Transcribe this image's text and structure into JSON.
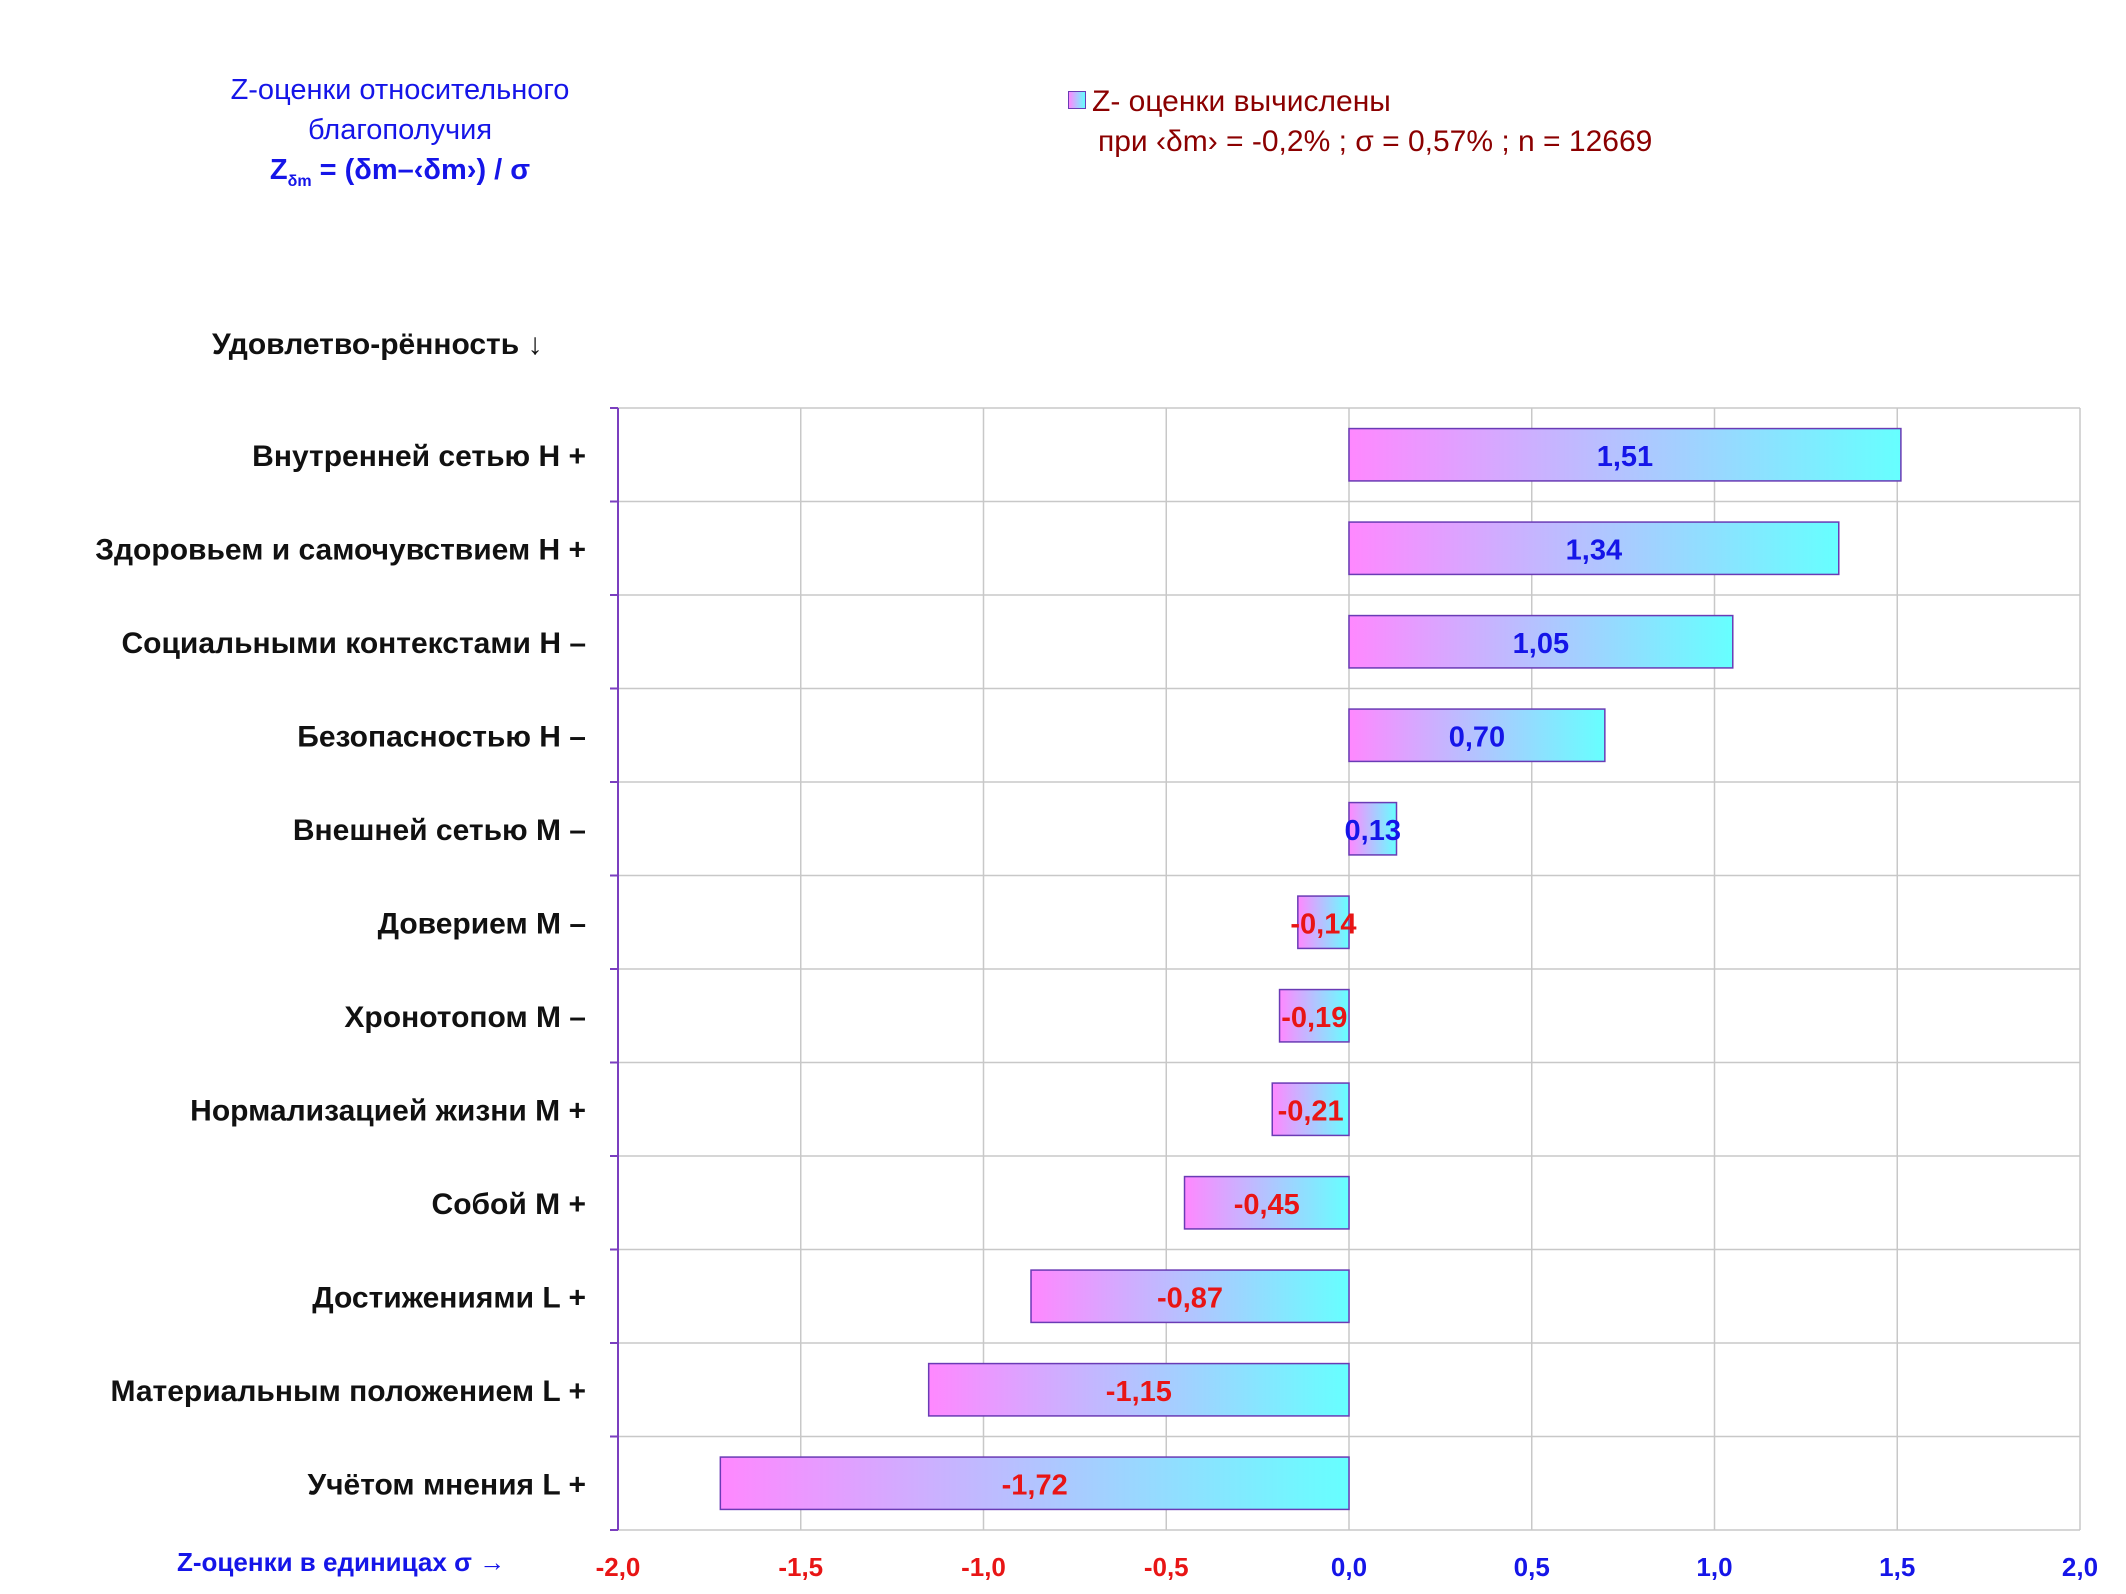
{
  "title": {
    "line1": "Z-оценки  относительного",
    "line2": "благополучия",
    "formula_z": "Z",
    "formula_sub": "δm",
    "formula_rest": " = (δm–‹δm›)  / σ"
  },
  "legend": {
    "line1": "Z- оценки вычислены",
    "line2": "при ‹δm› = -0,2% ; σ = 0,57% ; n = 12669"
  },
  "chart_data": {
    "type": "bar",
    "orientation": "horizontal",
    "ylabel": "Удовлетво-рённость ↓",
    "xlabel": "Z-оценки в единицах σ →",
    "xlim": [
      -2.0,
      2.0
    ],
    "xticks": [
      -2.0,
      -1.5,
      -1.0,
      -0.5,
      0.0,
      0.5,
      1.0,
      1.5,
      2.0
    ],
    "xtick_labels": [
      "-2,0",
      "-1,5",
      "-1,0",
      "-0,5",
      "0,0",
      "0,5",
      "1,0",
      "1,5",
      "2,0"
    ],
    "grid": true,
    "categories": [
      "Внутренней сетью  Н +",
      "Здоровьем и самочувствием  Н +",
      "Социальными контекстами  Н –",
      "Безопасностью  Н –",
      "Внешней сетью  М –",
      "Доверием  М –",
      "Хронотопом  М –",
      "Нормализацией жизни  М +",
      "Собой  М +",
      "Достижениями  L +",
      "Материальным положением  L +",
      "Учётом мнения  L +"
    ],
    "values": [
      1.51,
      1.34,
      1.05,
      0.7,
      0.13,
      -0.14,
      -0.19,
      -0.21,
      -0.45,
      -0.87,
      -1.15,
      -1.72
    ],
    "value_labels": [
      "1,51",
      "1,34",
      "1,05",
      "0,70",
      "0,13",
      "-0,14",
      "-0,19",
      "-0,21",
      "-0,45",
      "-0,87",
      "-1,15",
      "-1,72"
    ],
    "colors": {
      "bar_gradient_start": "#ff88ff",
      "bar_gradient_end": "#66ffff",
      "bar_border": "#6a3bb5",
      "positive_label": "#1515e8",
      "negative_label": "#e81515",
      "grid": "#c8c8c8",
      "axis": "#7b3fbf"
    }
  }
}
